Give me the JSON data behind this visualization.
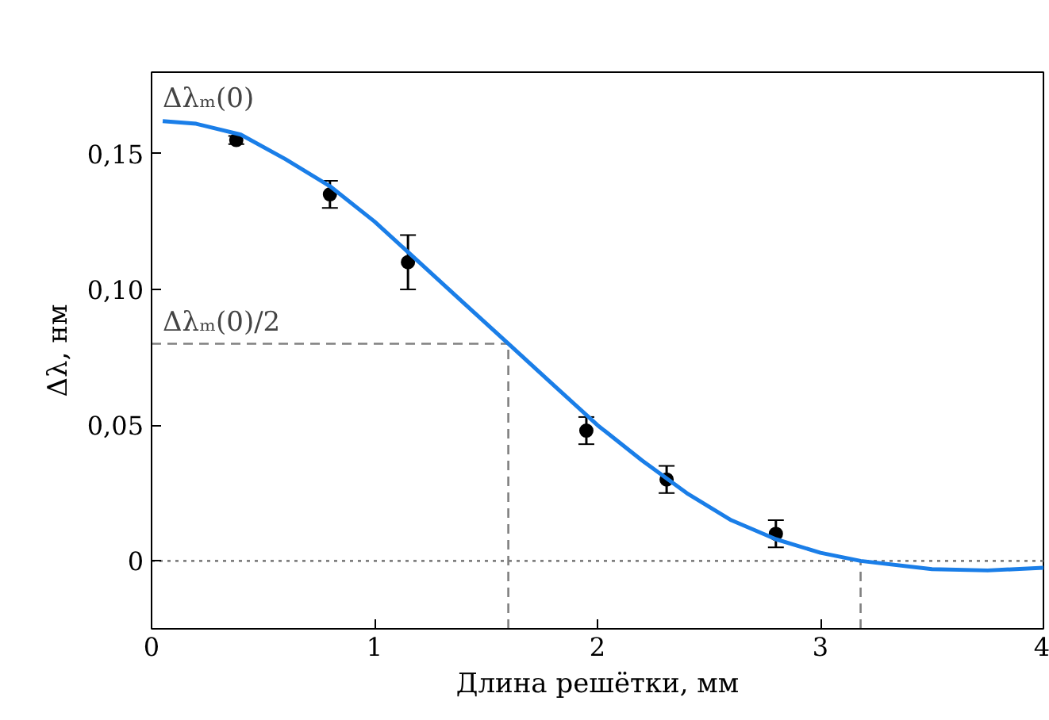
{
  "chart_data": {
    "type": "scatter",
    "xlabel": "Длина решётки, мм",
    "ylabel": "Δλ, нм",
    "xlim": [
      0,
      4
    ],
    "ylim": [
      -0.025,
      0.18
    ],
    "xticks": [
      0,
      1,
      2,
      3,
      4
    ],
    "yticks": [
      0,
      {
        "value": 0.05,
        "label": "0,05"
      },
      {
        "value": 0.1,
        "label": "0,10"
      },
      {
        "value": 0.15,
        "label": "0,15"
      }
    ],
    "grid": false,
    "marker": "circle",
    "x": [
      0.38,
      0.8,
      1.15,
      1.95,
      2.31,
      2.8
    ],
    "series": [
      {
        "color": "#000000",
        "values": [
          0.155,
          0.135,
          0.11,
          0.048,
          0.03,
          0.01
        ],
        "errors": [
          0.0015,
          0.005,
          0.01,
          0.005,
          0.005,
          0.005
        ]
      },
      {
        "type": "line",
        "color": "#1a7ee8",
        "marker": "none",
        "x": [
          0.05,
          0.2,
          0.4,
          0.6,
          0.8,
          1.0,
          1.2,
          1.4,
          1.6,
          1.8,
          2.0,
          2.2,
          2.4,
          2.6,
          2.8,
          3.0,
          3.18,
          3.5,
          3.75,
          4.0
        ],
        "values": [
          0.162,
          0.161,
          0.157,
          0.148,
          0.138,
          0.125,
          0.11,
          0.095,
          0.08,
          0.065,
          0.05,
          0.037,
          0.025,
          0.015,
          0.008,
          0.003,
          0,
          -0.003,
          -0.0035,
          -0.0025
        ]
      }
    ],
    "ref_lines": [
      {
        "axis": "y",
        "value": 0.08,
        "label": "Δλₘ(0)/2",
        "color": "#808080",
        "line_style": "dashed"
      },
      {
        "axis": "x",
        "value": 1.6,
        "color": "#808080",
        "line_style": "dashed"
      },
      {
        "axis": "x",
        "value": 3.18,
        "color": "#808080",
        "line_style": "dashed"
      },
      {
        "axis": "y",
        "value": 0,
        "color": "#808080",
        "line_style": "dotted"
      }
    ],
    "annotations": [
      {
        "text": "Δλₘ(0)",
        "x": 0.05,
        "y": 0.162
      }
    ]
  }
}
